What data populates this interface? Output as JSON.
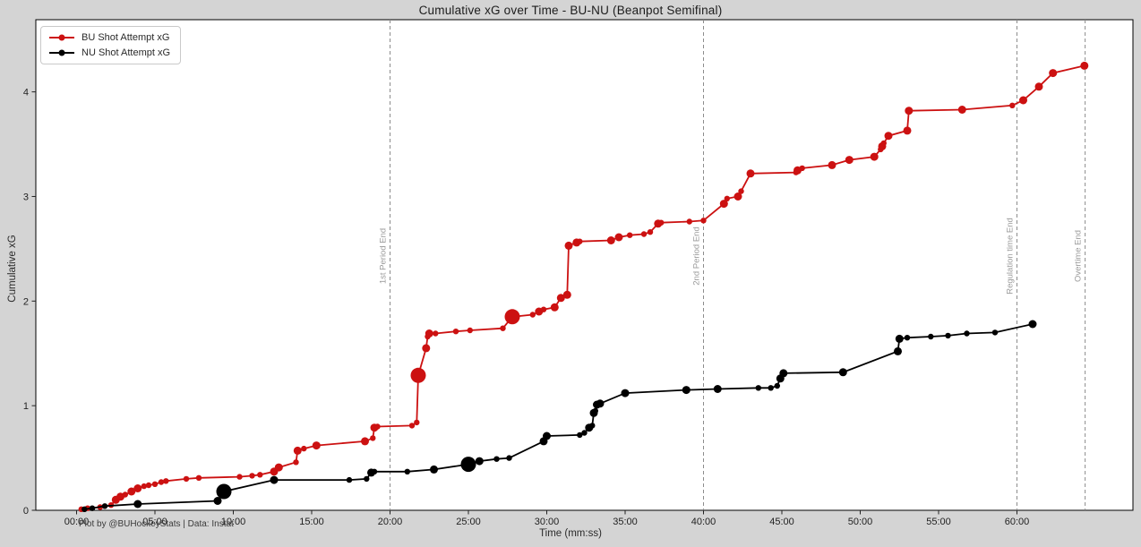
{
  "window": {
    "background": "#d4d4d4",
    "plot_background": "#ffffff"
  },
  "chart": {
    "title": "Cumulative xG over Time - BU-NU (Beanpot Semifinal)",
    "xlabel": "Time (mm:ss)",
    "ylabel": "Cumulative xG",
    "attribution": "Plot by @BUHockeyStats | Data: Instat",
    "legend": [
      {
        "label": "BU Shot Attempt xG",
        "color": "#cc1111"
      },
      {
        "label": "NU Shot Attempt xG",
        "color": "#000000"
      }
    ]
  },
  "chart_data": {
    "type": "line",
    "title": "Cumulative xG over Time - BU-NU (Beanpot Semifinal)",
    "xlabel": "Time (mm:ss)",
    "ylabel": "Cumulative xG",
    "x_unit": "minutes",
    "xlim": [
      -2.6,
      67.4
    ],
    "ylim": [
      0,
      4.69
    ],
    "grid": false,
    "legend_position": "upper-left",
    "x_ticks": [
      {
        "value": 0,
        "label": "00:00"
      },
      {
        "value": 5,
        "label": "05:00"
      },
      {
        "value": 10,
        "label": "10:00"
      },
      {
        "value": 15,
        "label": "15:00"
      },
      {
        "value": 20,
        "label": "20:00"
      },
      {
        "value": 25,
        "label": "25:00"
      },
      {
        "value": 30,
        "label": "30:00"
      },
      {
        "value": 35,
        "label": "35:00"
      },
      {
        "value": 40,
        "label": "40:00"
      },
      {
        "value": 45,
        "label": "45:00"
      },
      {
        "value": 50,
        "label": "50:00"
      },
      {
        "value": 55,
        "label": "55:00"
      },
      {
        "value": 60,
        "label": "60:00"
      }
    ],
    "y_ticks": [
      0,
      1,
      2,
      3,
      4
    ],
    "event_lines": [
      {
        "x": 20,
        "label": "1st Period End"
      },
      {
        "x": 40,
        "label": "2nd Period End"
      },
      {
        "x": 60,
        "label": "Regulation time End"
      },
      {
        "x": 64.35,
        "label": "Overtime End"
      }
    ],
    "marker_sizes": {
      "s": 3.2,
      "m": 4.5,
      "l": 8.5
    },
    "series": [
      {
        "name": "BU Shot Attempt xG",
        "color": "#cc1111",
        "points": [
          [
            0.3,
            0.01,
            "s"
          ],
          [
            0.7,
            0.02,
            "s"
          ],
          [
            1.5,
            0.03,
            "s"
          ],
          [
            2.2,
            0.05,
            "s"
          ],
          [
            2.5,
            0.1,
            "m"
          ],
          [
            2.8,
            0.13,
            "m"
          ],
          [
            3.1,
            0.15,
            "s"
          ],
          [
            3.5,
            0.18,
            "m"
          ],
          [
            3.9,
            0.21,
            "m"
          ],
          [
            4.3,
            0.23,
            "s"
          ],
          [
            4.6,
            0.24,
            "s"
          ],
          [
            5.0,
            0.25,
            "s"
          ],
          [
            5.4,
            0.27,
            "s"
          ],
          [
            5.7,
            0.28,
            "s"
          ],
          [
            7.0,
            0.3,
            "s"
          ],
          [
            7.8,
            0.31,
            "s"
          ],
          [
            10.4,
            0.32,
            "s"
          ],
          [
            11.2,
            0.33,
            "s"
          ],
          [
            11.7,
            0.34,
            "s"
          ],
          [
            12.6,
            0.37,
            "m"
          ],
          [
            12.9,
            0.41,
            "m"
          ],
          [
            14.0,
            0.46,
            "s"
          ],
          [
            14.1,
            0.57,
            "m"
          ],
          [
            14.5,
            0.59,
            "s"
          ],
          [
            15.3,
            0.62,
            "m"
          ],
          [
            18.4,
            0.66,
            "m"
          ],
          [
            18.9,
            0.69,
            "s"
          ],
          [
            19.0,
            0.79,
            "m"
          ],
          [
            19.2,
            0.8,
            "s"
          ],
          [
            21.4,
            0.81,
            "s"
          ],
          [
            21.7,
            0.84,
            "s"
          ],
          [
            21.8,
            1.29,
            "l"
          ],
          [
            22.3,
            1.55,
            "m"
          ],
          [
            22.4,
            1.66,
            "s"
          ],
          [
            22.5,
            1.69,
            "m"
          ],
          [
            22.9,
            1.69,
            "s"
          ],
          [
            24.2,
            1.71,
            "s"
          ],
          [
            25.1,
            1.72,
            "s"
          ],
          [
            27.2,
            1.74,
            "s"
          ],
          [
            27.8,
            1.85,
            "l"
          ],
          [
            29.1,
            1.87,
            "s"
          ],
          [
            29.5,
            1.9,
            "m"
          ],
          [
            29.8,
            1.92,
            "s"
          ],
          [
            30.5,
            1.94,
            "m"
          ],
          [
            30.9,
            2.03,
            "m"
          ],
          [
            31.3,
            2.06,
            "m"
          ],
          [
            31.4,
            2.53,
            "m"
          ],
          [
            31.9,
            2.56,
            "m"
          ],
          [
            32.1,
            2.57,
            "s"
          ],
          [
            34.1,
            2.58,
            "m"
          ],
          [
            34.6,
            2.61,
            "m"
          ],
          [
            35.3,
            2.63,
            "s"
          ],
          [
            36.2,
            2.64,
            "s"
          ],
          [
            36.6,
            2.66,
            "s"
          ],
          [
            37.1,
            2.74,
            "m"
          ],
          [
            37.3,
            2.75,
            "s"
          ],
          [
            39.1,
            2.76,
            "s"
          ],
          [
            40.0,
            2.77,
            "s"
          ],
          [
            41.3,
            2.93,
            "m"
          ],
          [
            41.5,
            2.98,
            "s"
          ],
          [
            42.2,
            3.0,
            "m"
          ],
          [
            42.4,
            3.05,
            "s"
          ],
          [
            43.0,
            3.22,
            "m"
          ],
          [
            45.9,
            3.23,
            "s"
          ],
          [
            46.0,
            3.25,
            "m"
          ],
          [
            46.3,
            3.27,
            "s"
          ],
          [
            48.2,
            3.3,
            "m"
          ],
          [
            49.3,
            3.35,
            "m"
          ],
          [
            50.9,
            3.38,
            "m"
          ],
          [
            51.3,
            3.45,
            "s"
          ],
          [
            51.4,
            3.48,
            "m"
          ],
          [
            51.5,
            3.51,
            "s"
          ],
          [
            51.8,
            3.58,
            "m"
          ],
          [
            53.0,
            3.63,
            "m"
          ],
          [
            53.1,
            3.82,
            "m"
          ],
          [
            56.5,
            3.83,
            "m"
          ],
          [
            59.7,
            3.87,
            "s"
          ],
          [
            60.4,
            3.92,
            "m"
          ],
          [
            61.4,
            4.05,
            "m"
          ],
          [
            62.3,
            4.18,
            "m"
          ],
          [
            64.3,
            4.25,
            "m"
          ]
        ]
      },
      {
        "name": "NU Shot Attempt xG",
        "color": "#000000",
        "points": [
          [
            0.5,
            0.01,
            "s"
          ],
          [
            1.0,
            0.02,
            "s"
          ],
          [
            1.8,
            0.04,
            "s"
          ],
          [
            3.9,
            0.06,
            "m"
          ],
          [
            9.0,
            0.09,
            "m"
          ],
          [
            9.4,
            0.18,
            "l"
          ],
          [
            12.6,
            0.29,
            "m"
          ],
          [
            17.4,
            0.29,
            "s"
          ],
          [
            18.5,
            0.3,
            "s"
          ],
          [
            18.8,
            0.36,
            "m"
          ],
          [
            19.0,
            0.37,
            "s"
          ],
          [
            21.1,
            0.37,
            "s"
          ],
          [
            22.8,
            0.39,
            "m"
          ],
          [
            25.0,
            0.44,
            "l"
          ],
          [
            25.7,
            0.47,
            "m"
          ],
          [
            26.8,
            0.49,
            "s"
          ],
          [
            27.6,
            0.5,
            "s"
          ],
          [
            29.8,
            0.66,
            "m"
          ],
          [
            30.0,
            0.71,
            "m"
          ],
          [
            32.1,
            0.72,
            "s"
          ],
          [
            32.4,
            0.74,
            "s"
          ],
          [
            32.7,
            0.79,
            "m"
          ],
          [
            32.9,
            0.81,
            "s"
          ],
          [
            33.0,
            0.93,
            "m"
          ],
          [
            33.1,
            0.95,
            "s"
          ],
          [
            33.2,
            1.01,
            "m"
          ],
          [
            33.4,
            1.02,
            "m"
          ],
          [
            35.0,
            1.12,
            "m"
          ],
          [
            38.9,
            1.15,
            "m"
          ],
          [
            40.9,
            1.16,
            "m"
          ],
          [
            43.5,
            1.17,
            "s"
          ],
          [
            44.3,
            1.17,
            "s"
          ],
          [
            44.7,
            1.19,
            "s"
          ],
          [
            44.9,
            1.26,
            "m"
          ],
          [
            45.1,
            1.31,
            "m"
          ],
          [
            48.9,
            1.32,
            "m"
          ],
          [
            52.4,
            1.52,
            "m"
          ],
          [
            52.5,
            1.64,
            "m"
          ],
          [
            53.0,
            1.65,
            "s"
          ],
          [
            54.5,
            1.66,
            "s"
          ],
          [
            55.6,
            1.67,
            "s"
          ],
          [
            56.8,
            1.69,
            "s"
          ],
          [
            58.6,
            1.7,
            "s"
          ],
          [
            61.0,
            1.78,
            "m"
          ]
        ]
      }
    ]
  }
}
